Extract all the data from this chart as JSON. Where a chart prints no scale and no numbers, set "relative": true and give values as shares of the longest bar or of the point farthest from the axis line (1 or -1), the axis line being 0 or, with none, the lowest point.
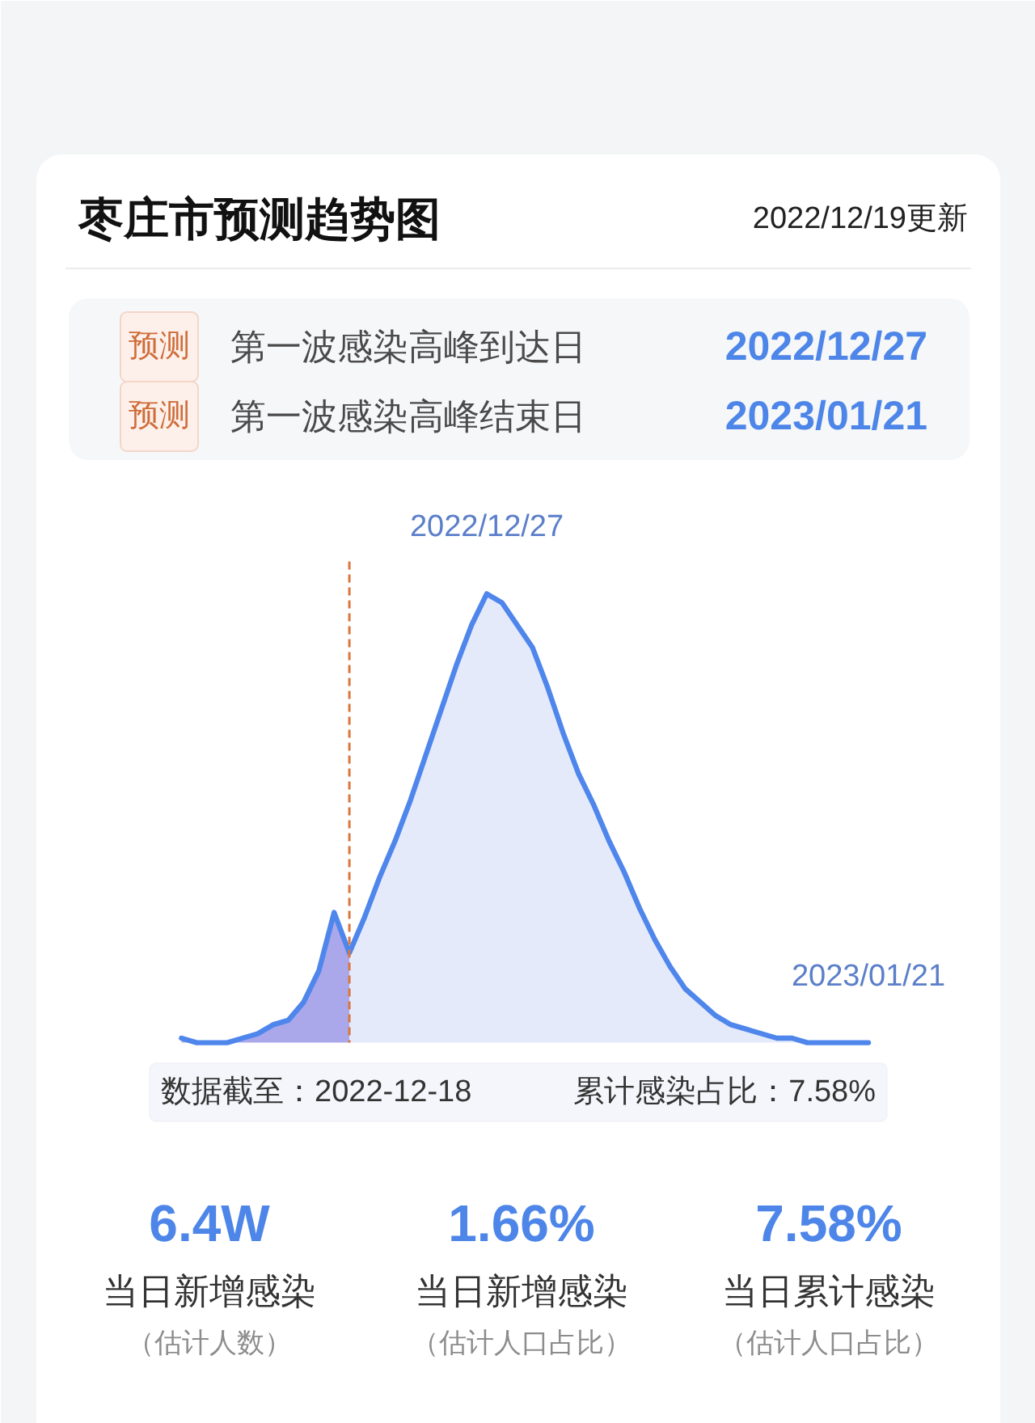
{
  "chart_data": {
    "type": "area",
    "title": "枣庄市预测趋势图",
    "subtitle": "2022/12/19更新",
    "relative": true,
    "tick_labels": false,
    "categories": [
      null,
      null,
      null,
      null,
      null,
      null,
      null,
      null,
      null,
      null,
      null,
      null,
      null,
      null,
      null,
      null,
      null,
      null,
      null,
      null,
      null,
      null,
      null,
      null,
      null,
      null,
      null,
      null,
      null,
      null,
      null,
      null,
      null,
      null,
      null,
      null,
      null,
      null,
      null,
      null,
      null,
      null,
      null,
      null,
      null,
      null
    ],
    "series": [
      {
        "color": "#aaa8ea",
        "values": [
          0.01,
          0.0,
          0.0,
          0.0,
          0.01,
          0.02,
          0.04,
          0.05,
          0.09,
          0.16,
          0.29,
          0.2,
          null,
          null,
          null,
          null,
          null,
          null,
          null,
          null,
          null,
          null,
          null,
          null,
          null,
          null,
          null,
          null,
          null,
          null,
          null,
          null,
          null,
          null,
          null,
          null,
          null,
          null,
          null,
          null,
          null,
          null,
          null,
          null,
          null,
          null
        ]
      },
      {
        "color": "#e5eafb",
        "values": [
          null,
          null,
          null,
          null,
          null,
          null,
          null,
          null,
          null,
          null,
          null,
          0.2,
          0.28,
          0.37,
          0.45,
          0.54,
          0.64,
          0.74,
          0.84,
          0.93,
          1.0,
          0.98,
          0.93,
          0.88,
          0.79,
          0.69,
          0.6,
          0.53,
          0.45,
          0.38,
          0.3,
          0.23,
          0.17,
          0.12,
          0.09,
          0.06,
          0.04,
          0.03,
          0.02,
          0.01,
          0.01,
          0.0,
          0.0,
          0.0,
          0.0,
          0.0
        ]
      },
      {
        "type": "line",
        "color": "#4f86ec",
        "values": [
          0.01,
          0.0,
          0.0,
          0.0,
          0.01,
          0.02,
          0.04,
          0.05,
          0.09,
          0.16,
          0.29,
          0.2,
          0.28,
          0.37,
          0.45,
          0.54,
          0.64,
          0.74,
          0.84,
          0.93,
          1.0,
          0.98,
          0.93,
          0.88,
          0.79,
          0.69,
          0.6,
          0.53,
          0.45,
          0.38,
          0.3,
          0.23,
          0.17,
          0.12,
          0.09,
          0.06,
          0.04,
          0.03,
          0.02,
          0.01,
          0.01,
          0.0,
          0.0,
          0.0,
          0.0,
          0.0
        ]
      }
    ],
    "annotations": [
      "预测",
      "第一波感染高峰到达日",
      "2022/12/27",
      "预测",
      "第一波感染高峰结束日",
      "2023/01/21",
      "2022/12/27",
      "2023/01/21",
      "数据截至：2022-12-18",
      "累计感染占比：7.58%",
      "6.4W",
      "当日新增感染",
      "（估计人数）",
      "1.66%",
      "当日新增感染",
      "（估计人口占比）",
      "7.58%",
      "当日累计感染",
      "（估计人口占比）"
    ]
  }
}
